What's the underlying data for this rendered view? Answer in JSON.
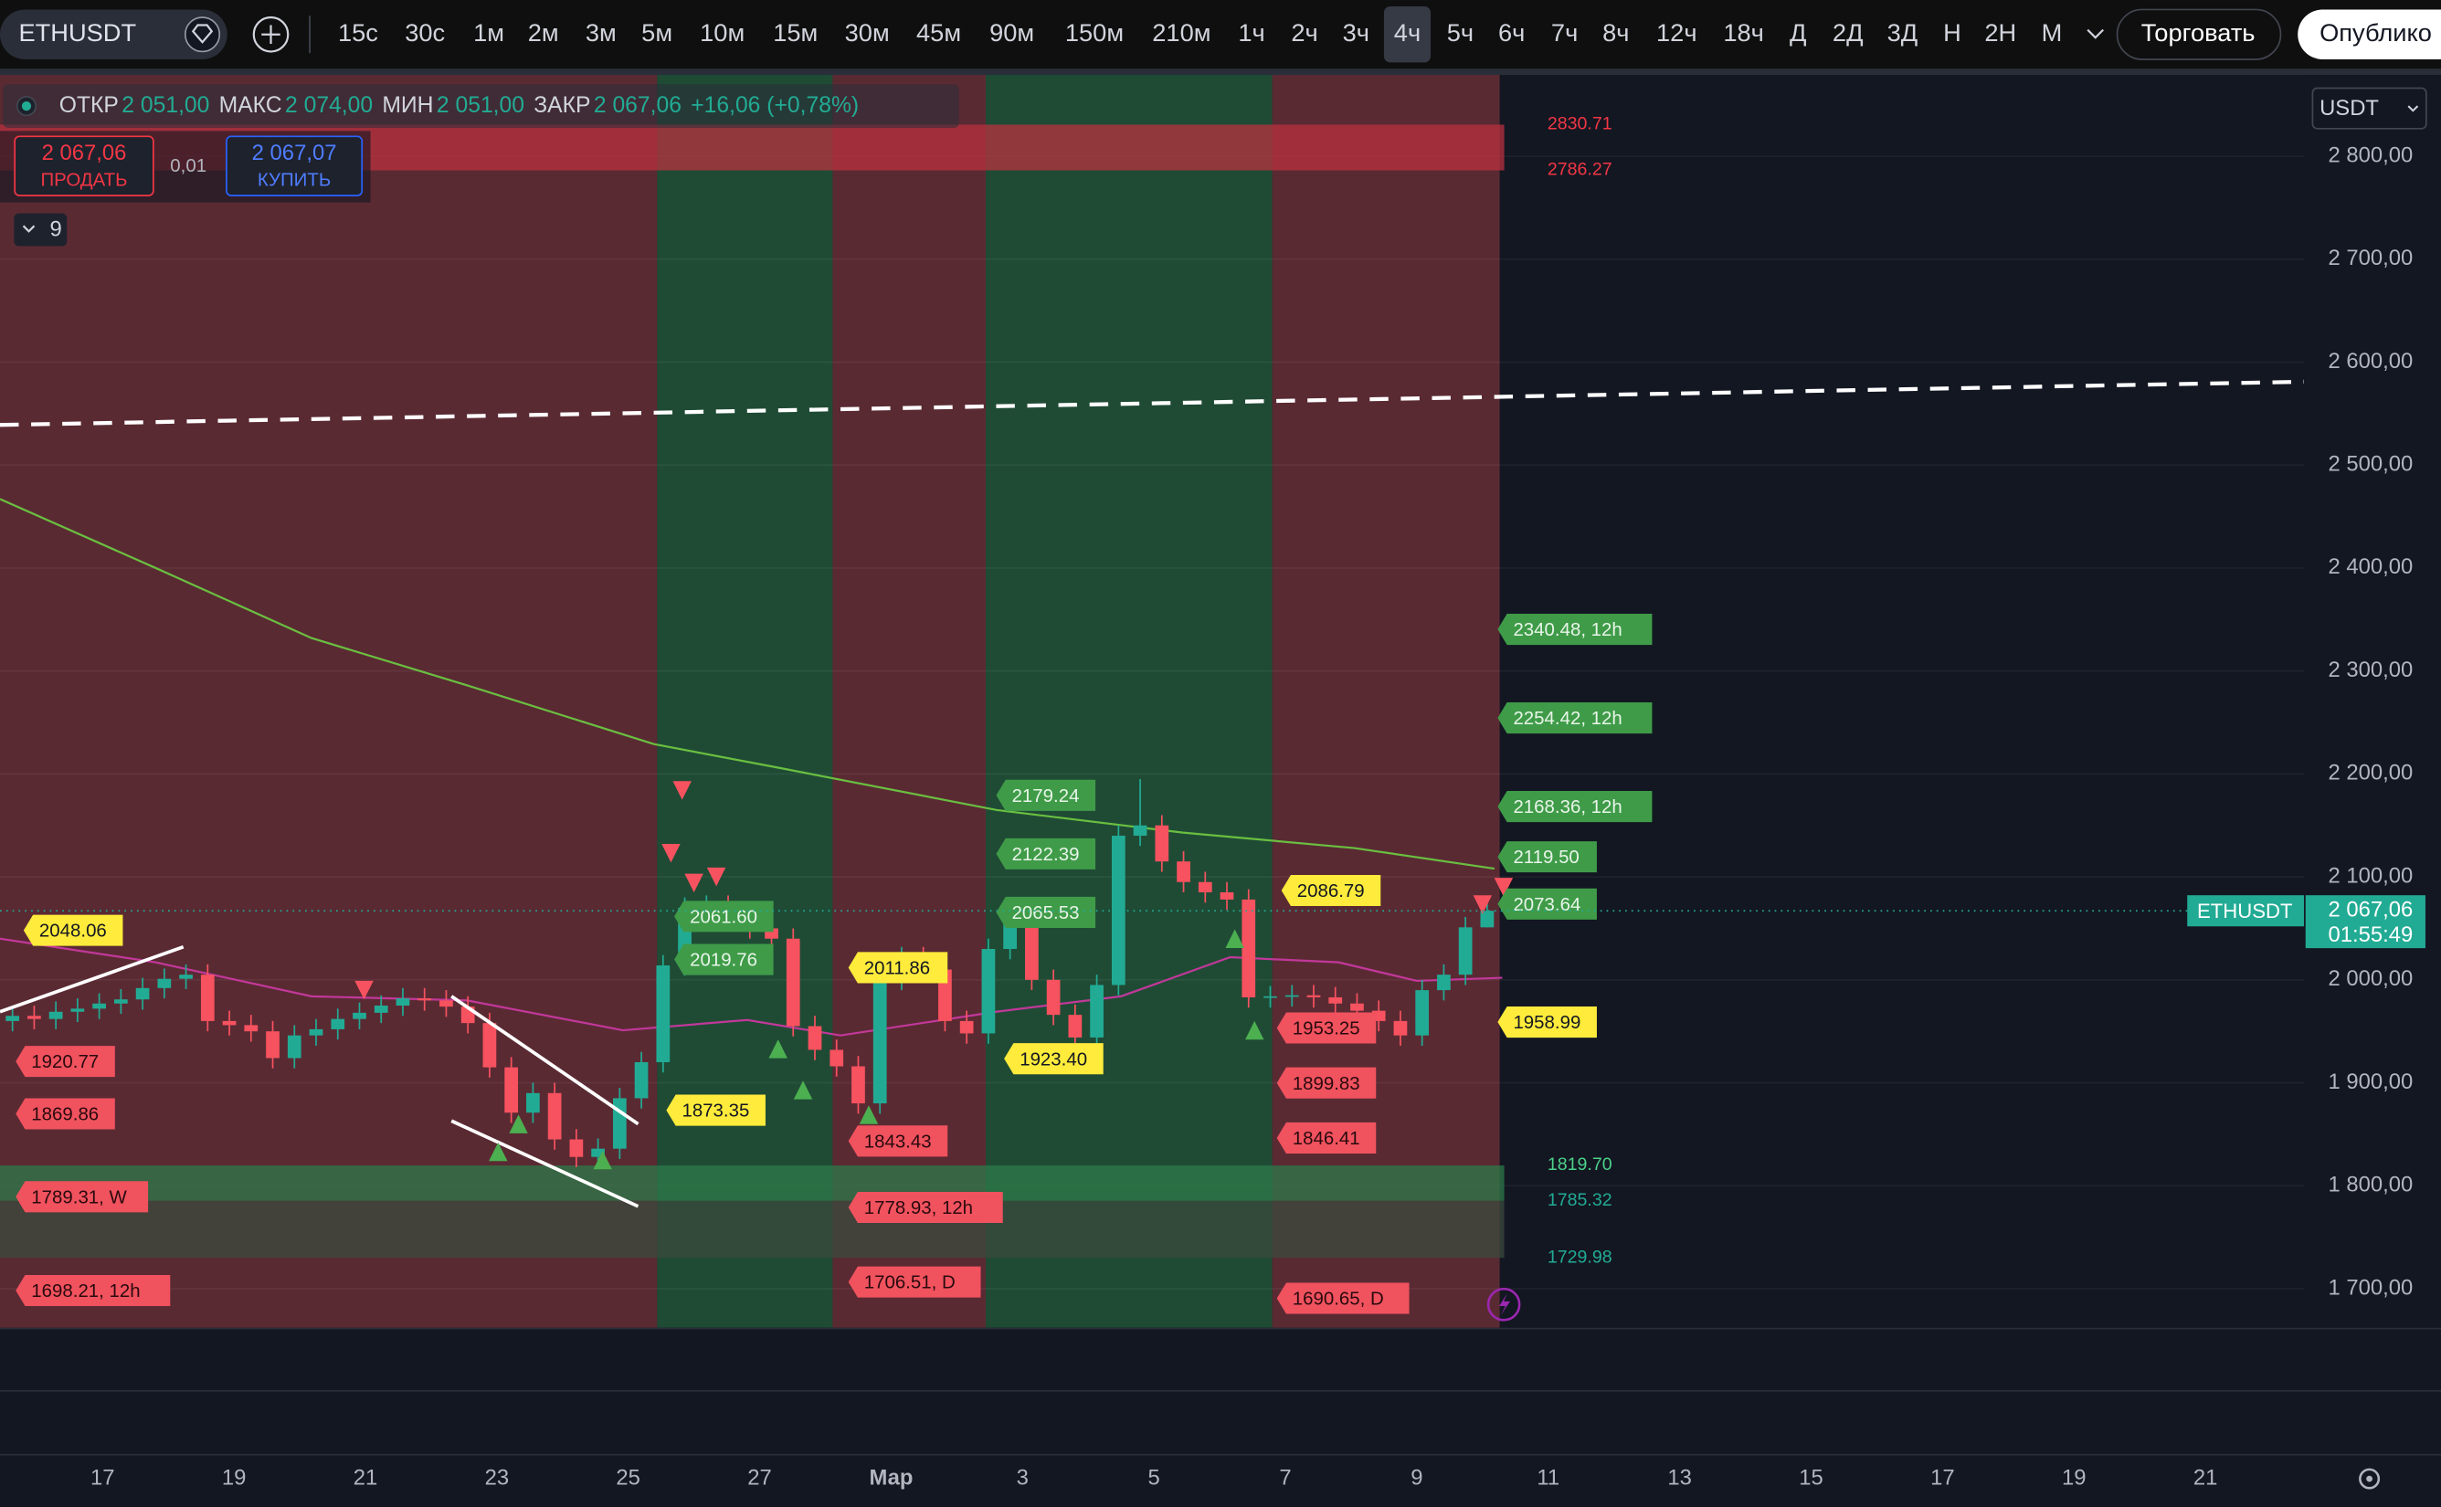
{
  "toolbar": {
    "symbol": "ETHUSDT",
    "intervals": [
      {
        "label": "15с"
      },
      {
        "label": "30с"
      },
      {
        "label": "1м"
      },
      {
        "label": "2м"
      },
      {
        "label": "3м"
      },
      {
        "label": "5м"
      },
      {
        "label": "10м"
      },
      {
        "label": "15м"
      },
      {
        "label": "30м"
      },
      {
        "label": "45м"
      },
      {
        "label": "90м"
      },
      {
        "label": "150м"
      },
      {
        "label": "210м"
      },
      {
        "label": "1ч"
      },
      {
        "label": "2ч"
      },
      {
        "label": "3ч"
      },
      {
        "label": "4ч",
        "active": true
      },
      {
        "label": "5ч"
      },
      {
        "label": "6ч"
      },
      {
        "label": "7ч"
      },
      {
        "label": "8ч"
      },
      {
        "label": "12ч"
      },
      {
        "label": "18ч"
      },
      {
        "label": "Д"
      },
      {
        "label": "2Д"
      },
      {
        "label": "3Д"
      },
      {
        "label": "Н"
      },
      {
        "label": "2Н"
      },
      {
        "label": "М"
      }
    ],
    "trade": "Торговать",
    "publish": "Опублико"
  },
  "legend": {
    "open_label": "ОТКР",
    "open": "2 051,00",
    "high_label": "МАКС",
    "high": "2 074,00",
    "low_label": "МИН",
    "low": "2 051,00",
    "close_label": "ЗАКР",
    "close": "2 067,06",
    "change": "+16,06 (+0,78%)",
    "sell_price": "2 067,06",
    "sell": "ПРОДАТЬ",
    "spread": "0,01",
    "buy_price": "2 067,07",
    "buy": "КУПИТЬ",
    "indicators_count": "9"
  },
  "currency": "USDT",
  "price_tag": {
    "symbol": "ETHUSDT",
    "price": "2 067,06",
    "countdown": "01:55:49"
  },
  "chart_data": {
    "type": "candlestick",
    "x": [
      -1.37,
      -1.04,
      -0.71,
      -0.38,
      -0.05,
      0.28,
      0.61,
      0.94,
      1.27,
      1.6,
      1.93,
      2.26,
      2.59,
      2.92,
      3.25,
      3.58,
      3.91,
      4.24,
      4.57,
      4.9,
      5.23,
      5.56,
      5.89,
      6.22,
      6.55,
      6.88,
      7.21,
      7.54,
      7.87,
      8.2,
      8.53,
      8.86,
      9.19,
      9.52,
      9.85,
      10.18,
      10.51,
      10.84,
      11.17,
      11.5,
      11.83,
      12.16,
      12.49,
      12.82,
      13.15,
      13.48,
      13.81,
      14.14,
      14.47,
      14.8,
      15.13,
      15.46,
      15.79,
      16.12,
      16.45,
      16.78,
      17.11,
      17.44,
      17.77,
      18.1,
      18.43,
      18.76,
      19.09,
      19.42,
      19.75,
      20.08,
      20.41,
      20.74,
      21.07
    ],
    "open": [
      1960,
      1965,
      1962,
      1969,
      1972,
      1977,
      1981,
      1992,
      2001,
      2005,
      1960,
      1956,
      1950,
      1924,
      1946,
      1952,
      1962,
      1968,
      1975,
      1982,
      1980,
      1974,
      1958,
      1915,
      1871,
      1890,
      1845,
      1828,
      1836,
      1885,
      1920,
      2014,
      2070,
      2072,
      2060,
      2050,
      2040,
      1955,
      1932,
      1916,
      1880,
      2000,
      2022,
      2010,
      1960,
      1948,
      2030,
      2055,
      2000,
      1966,
      1944,
      1995,
      2140,
      2150,
      2115,
      2095,
      2085,
      2078,
      1983,
      1984,
      1985,
      1983,
      1977,
      1970,
      1960,
      1946,
      1990,
      2005,
      2051
    ],
    "high": [
      1975,
      1975,
      1979,
      1982,
      1987,
      1991,
      2002,
      2011,
      2015,
      2015,
      1970,
      1966,
      1960,
      1956,
      1962,
      1972,
      1978,
      1985,
      1992,
      1992,
      1990,
      1984,
      1968,
      1925,
      1900,
      1900,
      1855,
      1846,
      1895,
      1930,
      2024,
      2080,
      2082,
      2082,
      2070,
      2060,
      2050,
      1965,
      1942,
      1926,
      2010,
      2032,
      2032,
      2020,
      1970,
      2040,
      2065,
      2065,
      2010,
      1976,
      2005,
      2150,
      2195,
      2160,
      2125,
      2105,
      2095,
      2088,
      1994,
      1995,
      1995,
      1993,
      1987,
      1980,
      1970,
      2000,
      2015,
      2061,
      2074
    ],
    "low": [
      1950,
      1952,
      1952,
      1959,
      1962,
      1967,
      1971,
      1982,
      1991,
      1950,
      1946,
      1940,
      1914,
      1914,
      1936,
      1942,
      1952,
      1958,
      1965,
      1970,
      1964,
      1948,
      1905,
      1861,
      1861,
      1835,
      1818,
      1818,
      1826,
      1875,
      1910,
      2004,
      2060,
      2050,
      2040,
      2030,
      1945,
      1922,
      1906,
      1870,
      1870,
      1990,
      2000,
      1950,
      1938,
      1938,
      2020,
      1990,
      1956,
      1934,
      1934,
      1985,
      2130,
      2105,
      2085,
      2075,
      2068,
      1973,
      1973,
      1974,
      1973,
      1967,
      1960,
      1950,
      1936,
      1936,
      1980,
      1995,
      2051
    ],
    "close": [
      1965,
      1962,
      1969,
      1972,
      1977,
      1981,
      1992,
      2001,
      2005,
      1960,
      1956,
      1950,
      1924,
      1946,
      1952,
      1962,
      1968,
      1975,
      1982,
      1980,
      1974,
      1958,
      1915,
      1871,
      1890,
      1845,
      1828,
      1836,
      1885,
      1920,
      2014,
      2070,
      2072,
      2060,
      2050,
      2040,
      1955,
      1932,
      1916,
      1880,
      2000,
      2022,
      2010,
      1960,
      1948,
      2030,
      2055,
      2000,
      1966,
      1944,
      1995,
      2140,
      2150,
      2115,
      2095,
      2085,
      2078,
      1983,
      1984,
      1985,
      1983,
      1977,
      1970,
      1960,
      1946,
      1990,
      2005,
      2051,
      2067.06
    ],
    "up_color": "#22ab94",
    "down_color": "#f7525f",
    "xlim": [
      -1.56,
      33.5
    ],
    "ylim": [
      1662,
      2879
    ],
    "xticks": [
      {
        "value": 0,
        "label": "17"
      },
      {
        "value": 2,
        "label": "19"
      },
      {
        "value": 4,
        "label": "21"
      },
      {
        "value": 6,
        "label": "23"
      },
      {
        "value": 8,
        "label": "25"
      },
      {
        "value": 10,
        "label": "27"
      },
      {
        "value": 12,
        "label": "Мар"
      },
      {
        "value": 14,
        "label": "3"
      },
      {
        "value": 16,
        "label": "5"
      },
      {
        "value": 18,
        "label": "7"
      },
      {
        "value": 20,
        "label": "9"
      },
      {
        "value": 22,
        "label": "11"
      },
      {
        "value": 24,
        "label": "13"
      },
      {
        "value": 26,
        "label": "15"
      },
      {
        "value": 28,
        "label": "17"
      },
      {
        "value": 30,
        "label": "19"
      },
      {
        "value": 32,
        "label": "21"
      }
    ],
    "yticks": [
      {
        "value": 1700,
        "label": "1 700,00"
      },
      {
        "value": 1800,
        "label": "1 800,00"
      },
      {
        "value": 1900,
        "label": "1 900,00"
      },
      {
        "value": 2000,
        "label": "2 000,00"
      },
      {
        "value": 2100,
        "label": "2 100,00"
      },
      {
        "value": 2200,
        "label": "2 200,00"
      },
      {
        "value": 2300,
        "label": "2 300,00"
      },
      {
        "value": 2400,
        "label": "2 400,00"
      },
      {
        "value": 2500,
        "label": "2 500,00"
      },
      {
        "value": 2600,
        "label": "2 600,00"
      },
      {
        "value": 2700,
        "label": "2 700,00"
      },
      {
        "value": 2800,
        "label": "2 800,00"
      }
    ],
    "grid": true,
    "zones": [
      {
        "from": -1.56,
        "to": 8.44,
        "color": "#5a2a33"
      },
      {
        "from": 8.44,
        "to": 11.11,
        "color": "#1f4b35"
      },
      {
        "from": 11.11,
        "to": 13.44,
        "color": "#5a2a33"
      },
      {
        "from": 13.44,
        "to": 17.8,
        "color": "#1f4b35"
      },
      {
        "from": 17.8,
        "to": 21.26,
        "color": "#5a2a33"
      }
    ],
    "boxes": [
      {
        "from": -1.56,
        "to": 21.33,
        "high": 2830.71,
        "low": 2786.27,
        "color": "#b8323f"
      },
      {
        "from": -1.56,
        "to": 21.33,
        "high": 1819.7,
        "low": 1785.32,
        "color": "#2e7a4a"
      },
      {
        "from": -1.56,
        "to": 21.33,
        "high": 1785.32,
        "low": 1729.98,
        "color": "#3b4a3e"
      }
    ],
    "levels": [
      {
        "value": 2830.71,
        "label": "2830.71",
        "color": "#f23645"
      },
      {
        "value": 2786.27,
        "label": "2786.27",
        "color": "#f23645"
      },
      {
        "value": 1819.7,
        "label": "1819.70",
        "color": "#4cd18a"
      },
      {
        "value": 1785.32,
        "label": "1785.32",
        "color": "#22ab94"
      },
      {
        "value": 1729.98,
        "label": "1729.98",
        "color": "#22ab94"
      }
    ],
    "lines": [
      {
        "x": [
          -1.56,
          0.81,
          3.18,
          5.55,
          8.39,
          10.29,
          13.6,
          16.44,
          19.05,
          21.18
        ],
        "values": [
          2467,
          2400,
          2332,
          2286,
          2229,
          2206,
          2165,
          2143,
          2128,
          2108
        ],
        "color": "#6abf40"
      },
      {
        "x": [
          -1.56,
          0.81,
          3.18,
          5.55,
          7.92,
          9.81,
          11.23,
          13.6,
          15.5,
          17.16,
          18.81,
          20.0,
          21.3
        ],
        "values": [
          2040,
          2017,
          1984,
          1980,
          1951,
          1961,
          1946,
          1969,
          1984,
          2022,
          2017,
          1999,
          2002
        ],
        "color": "#c2389a"
      },
      {
        "x": [
          -1.56,
          33.5
        ],
        "values": [
          2539,
          2581
        ],
        "color": "#ffffff",
        "dashed": true
      }
    ],
    "trendline_color": "#ffffff",
    "trendlines": [
      {
        "x": [
          -1.56,
          1.23
        ],
        "values": [
          1969,
          2032
        ]
      },
      {
        "x": [
          5.31,
          8.15
        ],
        "values": [
          1984,
          1860
        ]
      },
      {
        "x": [
          5.31,
          8.15
        ],
        "values": [
          1863,
          1780
        ]
      }
    ],
    "signals_down": {
      "color": "#f7525f",
      "x": [
        8.82,
        8.65,
        9.0,
        9.34,
        3.98,
        21.0,
        21.32
      ],
      "values": [
        2184,
        2123,
        2094,
        2100,
        1990,
        2073,
        2090
      ]
    },
    "signals_up": {
      "color": "#4caf50",
      "x": [
        6.33,
        6.02,
        7.61,
        10.28,
        10.66,
        11.66,
        17.53,
        17.23
      ],
      "values": [
        1860,
        1833,
        1825,
        1933,
        1893,
        1869,
        1951,
        2040
      ]
    },
    "flags": [
      {
        "color": "#ffeb3b",
        "text_color": "#131722",
        "items": [
          {
            "x": -1.2,
            "value": 2048.06,
            "label": "2048.06"
          },
          {
            "x": 8.58,
            "value": 1873.35,
            "label": "1873.35"
          },
          {
            "x": 11.35,
            "value": 2011.86,
            "label": "2011.86"
          },
          {
            "x": 13.72,
            "value": 1923.4,
            "label": "1923.40"
          },
          {
            "x": 17.94,
            "value": 2086.79,
            "label": "2086.79"
          },
          {
            "x": 21.23,
            "value": 1958.99,
            "label": "1958.99"
          }
        ]
      },
      {
        "color": "#3f9b48",
        "text_color": "#e8f5e9",
        "items": [
          {
            "x": 8.7,
            "value": 2061.6,
            "label": "2061.60"
          },
          {
            "x": 8.7,
            "value": 2019.76,
            "label": "2019.76"
          },
          {
            "x": 13.6,
            "value": 2179.24,
            "label": "2179.24"
          },
          {
            "x": 13.6,
            "value": 2122.39,
            "label": "2122.39"
          },
          {
            "x": 13.6,
            "value": 2065.53,
            "label": "2065.53"
          },
          {
            "x": 21.23,
            "value": 2340.48,
            "label": "2340.48, 12h"
          },
          {
            "x": 21.23,
            "value": 2254.42,
            "label": "2254.42, 12h"
          },
          {
            "x": 21.23,
            "value": 2168.36,
            "label": "2168.36, 12h"
          },
          {
            "x": 21.23,
            "value": 2119.5,
            "label": "2119.50"
          },
          {
            "x": 21.23,
            "value": 2073.64,
            "label": "2073.64"
          }
        ]
      },
      {
        "color": "#f0525e",
        "text_color": "#2a0a0e",
        "items": [
          {
            "x": -1.32,
            "value": 1920.77,
            "label": "1920.77"
          },
          {
            "x": -1.32,
            "value": 1869.86,
            "label": "1869.86"
          },
          {
            "x": -1.32,
            "value": 1789.31,
            "label": "1789.31, W"
          },
          {
            "x": -1.32,
            "value": 1698.21,
            "label": "1698.21, 12h"
          },
          {
            "x": 11.35,
            "value": 1843.43,
            "label": "1843.43"
          },
          {
            "x": 11.35,
            "value": 1778.93,
            "label": "1778.93, 12h"
          },
          {
            "x": 11.35,
            "value": 1706.51,
            "label": "1706.51, D"
          },
          {
            "x": 17.87,
            "value": 1953.25,
            "label": "1953.25"
          },
          {
            "x": 17.87,
            "value": 1899.83,
            "label": "1899.83"
          },
          {
            "x": 17.87,
            "value": 1846.41,
            "label": "1846.41"
          },
          {
            "x": 17.87,
            "value": 1690.65,
            "label": "1690.65, D"
          }
        ]
      }
    ]
  }
}
